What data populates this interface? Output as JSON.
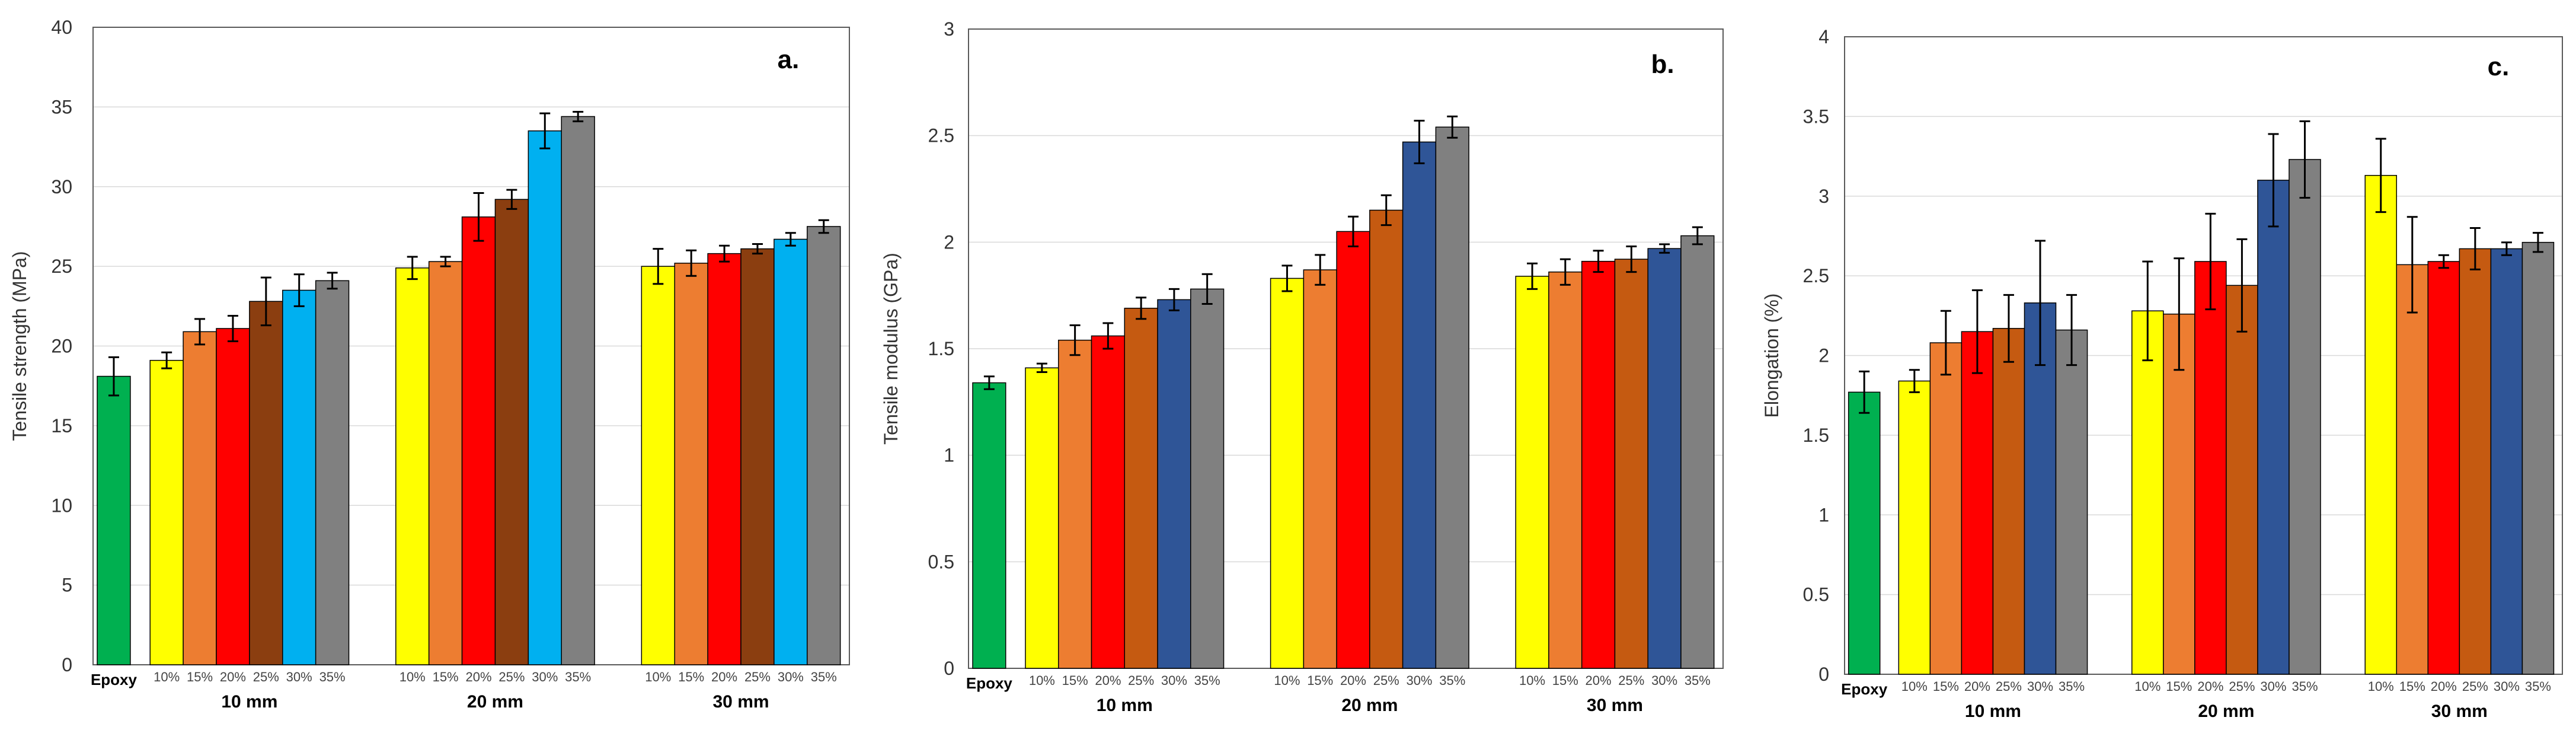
{
  "colors": {
    "epoxy": "#00B050",
    "pct10": "#FFFF00",
    "pct15": "#ED7D31",
    "pct20": "#FF0000",
    "pct25": "#8B3E10",
    "pct25_alt": "#C55A11",
    "pct30": "#00B0F0",
    "pct30_alt": "#2F5597",
    "pct35": "#808080",
    "grid": "#D9D9D9",
    "axis": "#595959"
  },
  "chart_data": [
    {
      "type": "bar",
      "title": "a.",
      "ylabel": "Tensile strength (MPa)",
      "xlabel": "",
      "ylim": [
        0,
        40
      ],
      "yticks": [
        0,
        5,
        10,
        15,
        20,
        25,
        30,
        35,
        40
      ],
      "ytick_labels": [
        "0",
        "5",
        "10",
        "15",
        "20",
        "25",
        "30",
        "35",
        "40"
      ],
      "grid": true,
      "control": {
        "label": "Epoxy",
        "value": 18.1,
        "error": 1.2,
        "color_key": "epoxy"
      },
      "groups": [
        {
          "label": "10 mm",
          "categories": [
            "10%",
            "15%",
            "20%",
            "25%",
            "30%",
            "35%"
          ],
          "values": [
            19.1,
            20.9,
            21.1,
            22.8,
            23.5,
            24.1
          ],
          "errors": [
            0.5,
            0.8,
            0.8,
            1.5,
            1.0,
            0.5
          ],
          "color_keys": [
            "pct10",
            "pct15",
            "pct20",
            "pct25",
            "pct30",
            "pct35"
          ]
        },
        {
          "label": "20 mm",
          "categories": [
            "10%",
            "15%",
            "20%",
            "25%",
            "30%",
            "35%"
          ],
          "values": [
            24.9,
            25.3,
            28.1,
            29.2,
            33.5,
            34.4
          ],
          "errors": [
            0.7,
            0.3,
            1.5,
            0.6,
            1.1,
            0.3
          ],
          "color_keys": [
            "pct10",
            "pct15",
            "pct20",
            "pct25",
            "pct30",
            "pct35"
          ]
        },
        {
          "label": "30 mm",
          "categories": [
            "10%",
            "15%",
            "20%",
            "25%",
            "30%",
            "35%"
          ],
          "values": [
            25.0,
            25.2,
            25.8,
            26.1,
            26.7,
            27.5
          ],
          "errors": [
            1.1,
            0.8,
            0.5,
            0.3,
            0.4,
            0.4
          ],
          "color_keys": [
            "pct10",
            "pct15",
            "pct20",
            "pct25",
            "pct30",
            "pct35"
          ]
        }
      ]
    },
    {
      "type": "bar",
      "title": "b.",
      "ylabel": "Tensile modulus (GPa)",
      "xlabel": "",
      "ylim": [
        0,
        3
      ],
      "yticks": [
        0,
        0.5,
        1,
        1.5,
        2,
        2.5,
        3
      ],
      "ytick_labels": [
        "0",
        "0.5",
        "1",
        "1.5",
        "2",
        "2.5",
        "3"
      ],
      "grid": true,
      "control": {
        "label": "Epoxy",
        "value": 1.34,
        "error": 0.03,
        "color_key": "epoxy"
      },
      "groups": [
        {
          "label": "10 mm",
          "categories": [
            "10%",
            "15%",
            "20%",
            "25%",
            "30%",
            "35%"
          ],
          "values": [
            1.41,
            1.54,
            1.56,
            1.69,
            1.73,
            1.78
          ],
          "errors": [
            0.02,
            0.07,
            0.06,
            0.05,
            0.05,
            0.07
          ],
          "color_keys": [
            "pct10",
            "pct15",
            "pct20",
            "pct25_alt",
            "pct30_alt",
            "pct35"
          ]
        },
        {
          "label": "20 mm",
          "categories": [
            "10%",
            "15%",
            "20%",
            "25%",
            "30%",
            "35%"
          ],
          "values": [
            1.83,
            1.87,
            2.05,
            2.15,
            2.47,
            2.54
          ],
          "errors": [
            0.06,
            0.07,
            0.07,
            0.07,
            0.1,
            0.05
          ],
          "color_keys": [
            "pct10",
            "pct15",
            "pct20",
            "pct25_alt",
            "pct30_alt",
            "pct35"
          ]
        },
        {
          "label": "30 mm",
          "categories": [
            "10%",
            "15%",
            "20%",
            "25%",
            "30%",
            "35%"
          ],
          "values": [
            1.84,
            1.86,
            1.91,
            1.92,
            1.97,
            2.03
          ],
          "errors": [
            0.06,
            0.06,
            0.05,
            0.06,
            0.02,
            0.04
          ],
          "color_keys": [
            "pct10",
            "pct15",
            "pct20",
            "pct25_alt",
            "pct30_alt",
            "pct35"
          ]
        }
      ]
    },
    {
      "type": "bar",
      "title": "c.",
      "ylabel": "Elongation (%)",
      "xlabel": "",
      "ylim": [
        0,
        4
      ],
      "yticks": [
        0,
        0.5,
        1,
        1.5,
        2,
        2.5,
        3,
        3.5,
        4
      ],
      "ytick_labels": [
        "0",
        "0.5",
        "1",
        "1.5",
        "2",
        "2.5",
        "3",
        "3.5",
        "4"
      ],
      "grid": true,
      "control": {
        "label": "Epoxy",
        "value": 1.77,
        "error": 0.13,
        "color_key": "epoxy"
      },
      "groups": [
        {
          "label": "10 mm",
          "categories": [
            "10%",
            "15%",
            "20%",
            "25%",
            "30%",
            "35%"
          ],
          "values": [
            1.84,
            2.08,
            2.15,
            2.17,
            2.33,
            2.16
          ],
          "errors": [
            0.07,
            0.2,
            0.26,
            0.21,
            0.39,
            0.22
          ],
          "color_keys": [
            "pct10",
            "pct15",
            "pct20",
            "pct25_alt",
            "pct30_alt",
            "pct35"
          ]
        },
        {
          "label": "20 mm",
          "categories": [
            "10%",
            "15%",
            "20%",
            "25%",
            "30%",
            "35%"
          ],
          "values": [
            2.28,
            2.26,
            2.59,
            2.44,
            3.1,
            3.23
          ],
          "errors": [
            0.31,
            0.35,
            0.3,
            0.29,
            0.29,
            0.24
          ],
          "color_keys": [
            "pct10",
            "pct15",
            "pct20",
            "pct25_alt",
            "pct30_alt",
            "pct35"
          ]
        },
        {
          "label": "30 mm",
          "categories": [
            "10%",
            "15%",
            "20%",
            "25%",
            "30%",
            "35%"
          ],
          "values": [
            3.13,
            2.57,
            2.59,
            2.67,
            2.67,
            2.71
          ],
          "errors": [
            0.23,
            0.3,
            0.04,
            0.13,
            0.04,
            0.06
          ],
          "color_keys": [
            "pct10",
            "pct15",
            "pct20",
            "pct25_alt",
            "pct30_alt",
            "pct35"
          ]
        }
      ]
    }
  ]
}
